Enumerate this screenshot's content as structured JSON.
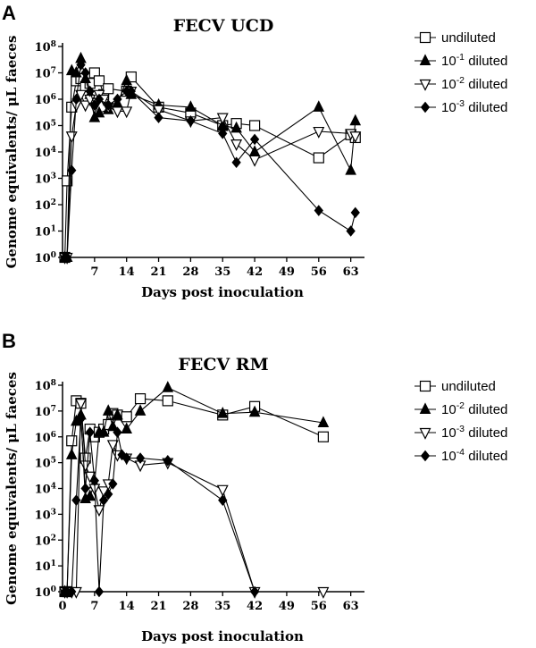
{
  "chart_data": [
    {
      "panel_label": "A",
      "type": "line",
      "title": "FECV UCD",
      "xlabel": "Days post inoculation",
      "ylabel": "Genome equivalents/ μL faeces",
      "xlim": [
        0,
        66
      ],
      "ylim_log10": [
        0,
        8
      ],
      "x_ticks": [
        7,
        14,
        21,
        28,
        35,
        42,
        49,
        56,
        63
      ],
      "y_ticks": [
        "10^0",
        "10^1",
        "10^2",
        "10^3",
        "10^4",
        "10^5",
        "10^6",
        "10^7",
        "10^8"
      ],
      "series": [
        {
          "name": "undiluted",
          "marker": "square-open",
          "x": [
            0.5,
            1,
            2,
            3,
            4,
            5,
            6,
            7,
            8,
            9,
            10,
            14,
            15,
            21,
            28,
            35,
            38,
            42,
            56,
            63,
            64
          ],
          "y": [
            1,
            800,
            500000,
            5000000,
            6000000,
            3000000,
            4000000,
            10000000,
            5000000,
            1500000,
            2500000,
            2000000,
            7000000,
            500000,
            300000,
            100000,
            120000,
            100000,
            6000,
            45000,
            35000
          ]
        },
        {
          "name": "10^-1 diluted",
          "marker": "triangle-up-filled",
          "x": [
            0.5,
            1,
            2,
            3,
            4,
            5,
            6,
            7,
            8,
            10,
            12,
            14,
            15,
            21,
            28,
            35,
            38,
            42,
            56,
            63,
            64
          ],
          "y": [
            1,
            1,
            12000000,
            10000000,
            35000000,
            6000000,
            1500000,
            200000,
            300000,
            400000,
            700000,
            5000000,
            1500000,
            600000,
            500000,
            100000,
            80000,
            10000,
            500000,
            2000,
            150000
          ]
        },
        {
          "name": "10^-2 diluted",
          "marker": "triangle-down-open",
          "x": [
            0.5,
            1,
            2,
            3,
            4,
            5,
            6,
            7,
            8,
            9,
            10,
            12,
            14,
            15,
            21,
            28,
            35,
            38,
            42,
            56,
            63,
            64
          ],
          "y": [
            1,
            1,
            40000,
            600000,
            1500000,
            600000,
            1000000,
            500000,
            1500000,
            1000000,
            500000,
            350000,
            350000,
            2000000,
            400000,
            150000,
            200000,
            20000,
            5000,
            60000,
            50000,
            40000
          ]
        },
        {
          "name": "10^-3 diluted",
          "marker": "diamond-filled",
          "x": [
            0.5,
            1,
            2,
            3,
            4,
            5,
            6,
            7,
            8,
            10,
            12,
            14,
            15,
            21,
            28,
            35,
            38,
            42,
            56,
            63,
            64
          ],
          "y": [
            1,
            1,
            2000,
            1000000,
            20000000,
            10000000,
            2000000,
            600000,
            1000000,
            600000,
            1000000,
            2000000,
            2000000,
            200000,
            150000,
            50000,
            4000,
            30000,
            60,
            10,
            50
          ]
        }
      ]
    },
    {
      "panel_label": "B",
      "type": "line",
      "title": "FECV RM",
      "xlabel": "Days post inoculation",
      "ylabel": "Genome equivalents/ μL faeces",
      "xlim": [
        0,
        66
      ],
      "ylim_log10": [
        0,
        8
      ],
      "x_ticks": [
        0,
        7,
        14,
        21,
        28,
        35,
        42,
        49,
        56,
        63
      ],
      "y_ticks": [
        "10^0",
        "10^1",
        "10^2",
        "10^3",
        "10^4",
        "10^5",
        "10^6",
        "10^7",
        "10^8"
      ],
      "series": [
        {
          "name": "undiluted",
          "marker": "square-open",
          "x": [
            0.5,
            1,
            2,
            3,
            4,
            5,
            6,
            7,
            8,
            9,
            10,
            11,
            12,
            14,
            17,
            23,
            35,
            42,
            57
          ],
          "y": [
            1,
            1,
            700000,
            25000000,
            20000000,
            150000,
            2000000,
            1000000,
            1500000,
            2000000,
            3000000,
            8000000,
            7000000,
            6000000,
            30000000,
            25000000,
            7000000,
            15000000,
            1000000
          ]
        },
        {
          "name": "10^-2 diluted",
          "marker": "triangle-up-filled",
          "x": [
            0.5,
            1,
            2,
            3,
            4,
            5,
            6,
            7,
            8,
            9,
            10,
            11,
            12,
            14,
            17,
            23,
            35,
            42,
            57
          ],
          "y": [
            1,
            1,
            200000,
            4000000,
            7000000,
            4000,
            5000,
            15000,
            1500000,
            1500000,
            10000000,
            2500000,
            7000000,
            2000000,
            10000000,
            80000000,
            8000000,
            9000000,
            3500000
          ]
        },
        {
          "name": "10^-3 diluted",
          "marker": "triangle-down-open",
          "x": [
            0.5,
            1,
            2,
            3,
            4,
            5,
            6,
            7,
            8,
            9,
            10,
            11,
            12,
            14,
            17,
            23,
            35,
            42,
            57
          ],
          "y": [
            1,
            1,
            1,
            1,
            20000000,
            80000,
            30000,
            10000,
            1500,
            8000,
            15000,
            500000,
            200000,
            150000,
            80000,
            100000,
            9000,
            1,
            1
          ]
        },
        {
          "name": "10^-4 diluted",
          "marker": "diamond-filled",
          "x": [
            0.5,
            1,
            2,
            3,
            4,
            5,
            6,
            7,
            8,
            9,
            10,
            11,
            12,
            13,
            14,
            17,
            23,
            35,
            42
          ],
          "y": [
            1,
            1,
            1,
            3500,
            5000000,
            10000,
            1500000,
            20000,
            1,
            3500,
            6000,
            15000,
            1500000,
            200000,
            150000,
            150000,
            120000,
            3500,
            1
          ]
        }
      ]
    }
  ]
}
